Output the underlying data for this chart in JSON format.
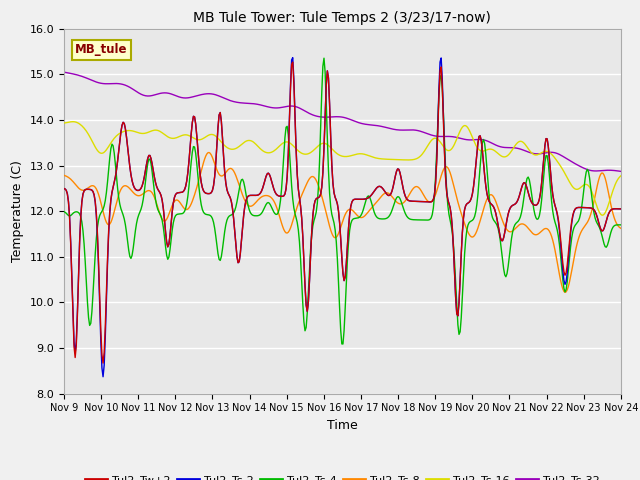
{
  "title": "MB Tule Tower: Tule Temps 2 (3/23/17-now)",
  "xlabel": "Time",
  "ylabel": "Temperature (C)",
  "ylim": [
    8.0,
    16.0
  ],
  "xlim": [
    0,
    15
  ],
  "plot_bg_color": "#e8e8e8",
  "fig_bg_color": "#f0f0f0",
  "series_colors": {
    "Tul2_Tw+2": "#cc0000",
    "Tul2_Ts-2": "#0000dd",
    "Tul2_Ts-4": "#00bb00",
    "Tul2_Ts-8": "#ff8800",
    "Tul2_Ts-16": "#dddd00",
    "Tul2_Ts-32": "#9900bb"
  },
  "lw": 1.0,
  "xtick_labels": [
    "Nov 9",
    "Nov 10",
    "Nov 11",
    "Nov 12",
    "Nov 13",
    "Nov 14",
    "Nov 15",
    "Nov 16",
    "Nov 17",
    "Nov 18",
    "Nov 19",
    "Nov 20",
    "Nov 21",
    "Nov 22",
    "Nov 23",
    "Nov 24"
  ],
  "xtick_positions": [
    0,
    1,
    2,
    3,
    4,
    5,
    6,
    7,
    8,
    9,
    10,
    11,
    12,
    13,
    14,
    15
  ],
  "ytick_labels": [
    "8.0",
    "9.0",
    "10.0",
    "11.0",
    "12.0",
    "13.0",
    "14.0",
    "15.0",
    "16.0"
  ],
  "ytick_positions": [
    8.0,
    9.0,
    10.0,
    11.0,
    12.0,
    13.0,
    14.0,
    15.0,
    16.0
  ],
  "station_label": "MB_tule",
  "grid_color": "#ffffff",
  "grid_lw": 1.0
}
